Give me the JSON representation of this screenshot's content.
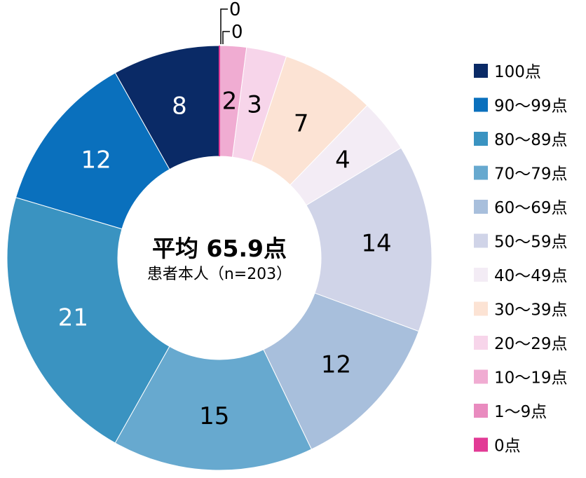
{
  "chart_data": {
    "type": "pie",
    "donut": true,
    "center_title": "平均 65.9点",
    "center_subtitle": "患者本人（n=203）",
    "slices": [
      {
        "label": "100点",
        "value": 8,
        "color": "#0a2a66",
        "text_color": "#ffffff"
      },
      {
        "label": "90～99点",
        "value": 12,
        "color": "#0a70bd",
        "text_color": "#ffffff"
      },
      {
        "label": "80～89点",
        "value": 21,
        "color": "#3a93c1",
        "text_color": "#ffffff"
      },
      {
        "label": "70～79点",
        "value": 15,
        "color": "#67a9cf",
        "text_color": "#000000"
      },
      {
        "label": "60～69点",
        "value": 12,
        "color": "#a8bfdc",
        "text_color": "#000000"
      },
      {
        "label": "50～59点",
        "value": 14,
        "color": "#d0d4e8",
        "text_color": "#000000"
      },
      {
        "label": "40～49点",
        "value": 4,
        "color": "#f3ecf5",
        "text_color": "#000000"
      },
      {
        "label": "30～39点",
        "value": 7,
        "color": "#fce3d4",
        "text_color": "#000000"
      },
      {
        "label": "20～29点",
        "value": 3,
        "color": "#f7d5ea",
        "text_color": "#000000"
      },
      {
        "label": "10～19点",
        "value": 2,
        "color": "#f0acd2",
        "text_color": "#000000"
      },
      {
        "label": "1～9点",
        "value": 0,
        "color": "#e98bbf",
        "text_color": "#000000"
      },
      {
        "label": "0点",
        "value": 0,
        "color": "#e23a95",
        "text_color": "#000000"
      }
    ],
    "legend_position": "right"
  }
}
